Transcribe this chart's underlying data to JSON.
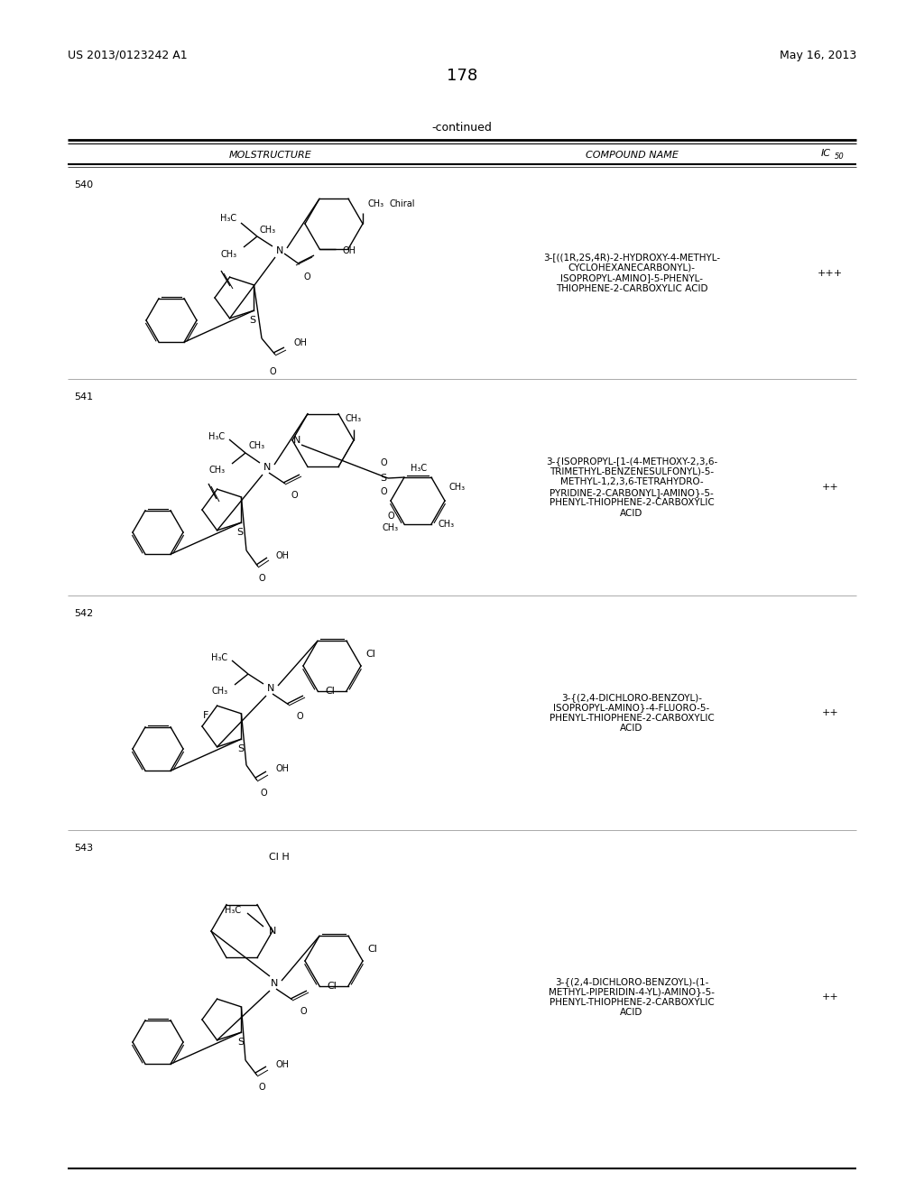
{
  "page_number": "178",
  "patent_number": "US 2013/0123242 A1",
  "patent_date": "May 16, 2013",
  "continued_label": "-continued",
  "col_header_molstructure": "MOLSTRUCTURE",
  "col_header_compound": "COMPOUND NAME",
  "col_header_ic50_1": "IC",
  "col_header_ic50_2": "50",
  "background_color": "#ffffff",
  "text_color": "#000000",
  "rows": [
    {
      "id": "540",
      "compound_name": "3-[((1R,2S,4R)-2-HYDROXY-4-METHYL-\nCYCLOHEXANECARBONYL)-\nISOPROPYL-AMINO]-5-PHENYL-\nTHIOPHENE-2-CARBOXYLIC ACID",
      "ic50": "+++"
    },
    {
      "id": "541",
      "compound_name": "3-{ISOPROPYL-[1-(4-METHOXY-2,3,6-\nTRIMETHYL-BENZENESULFONYL)-5-\nMETHYL-1,2,3,6-TETRAHYDRO-\nPYRIDINE-2-CARBONYL]-AMINO}-5-\nPHENYL-THIOPHENE-2-CARBOXYLIC\nACID",
      "ic50": "++"
    },
    {
      "id": "542",
      "compound_name": "3-{(2,4-DICHLORO-BENZOYL)-\nISOPROPYL-AMINO}-4-FLUORO-5-\nPHENYL-THIOPHENE-2-CARBOXYLIC\nACID",
      "ic50": "++"
    },
    {
      "id": "543",
      "compound_name": "3-{(2,4-DICHLORO-BENZOYL)-(1-\nMETHYL-PIPERIDIN-4-YL)-AMINO}-5-\nPHENYL-THIOPHENE-2-CARBOXYLIC\nACID",
      "ic50": "++",
      "extra_label": "Cl H"
    }
  ]
}
